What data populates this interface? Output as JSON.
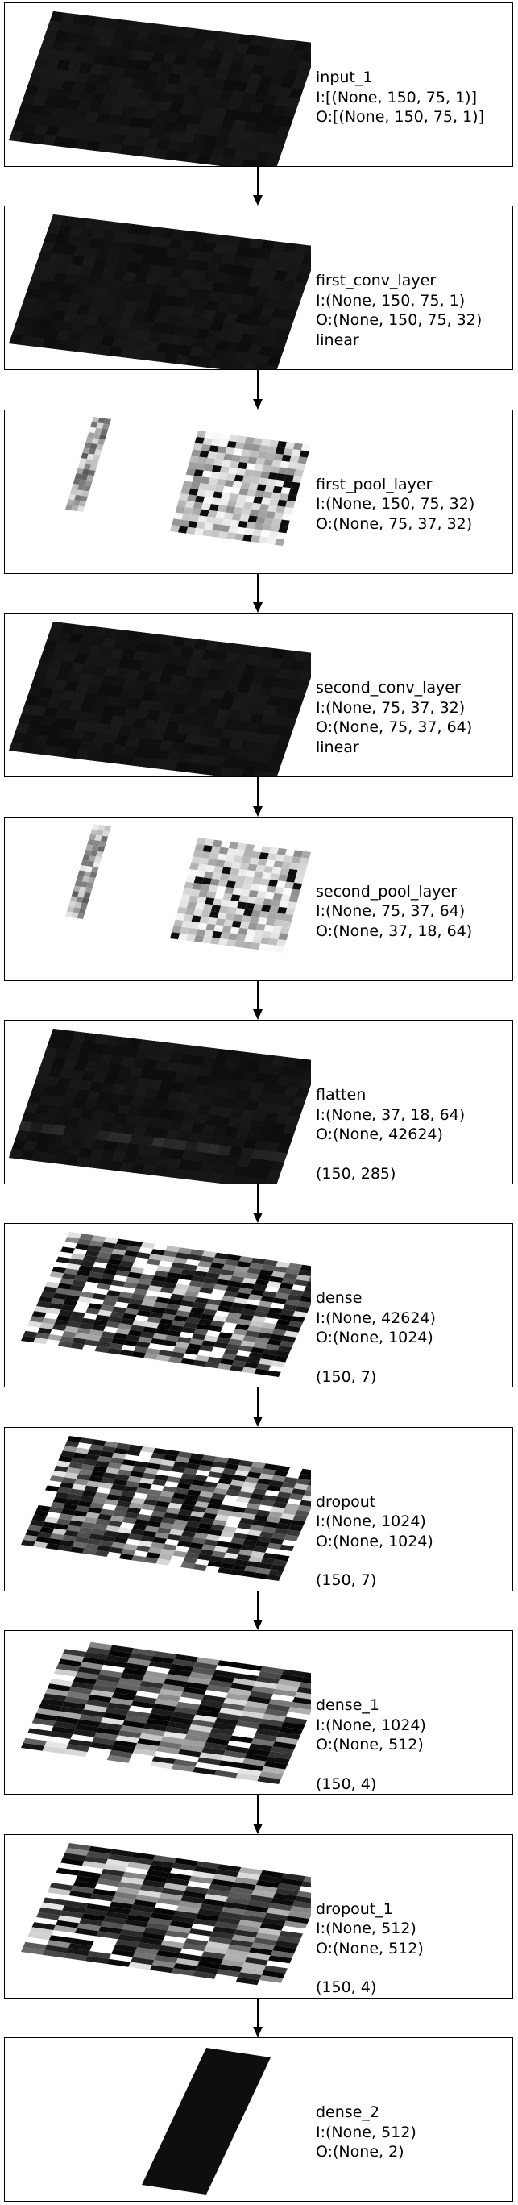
{
  "layers": [
    {
      "name": "input_1",
      "input": "I:[(None, 150, 75, 1)]",
      "output": "O:[(None, 150, 75, 1)]",
      "activation": "",
      "shape": "",
      "viz": "dark-plane"
    },
    {
      "name": "first_conv_layer",
      "input": "I:(None, 150, 75, 1)",
      "output": "O:(None, 150, 75, 32)",
      "activation": "linear",
      "shape": "",
      "viz": "dark-plane"
    },
    {
      "name": "first_pool_layer",
      "input": "I:(None, 150, 75, 32)",
      "output": "O:(None, 75, 37, 32)",
      "activation": "",
      "shape": "",
      "viz": "pool-maps"
    },
    {
      "name": "second_conv_layer",
      "input": "I:(None, 75, 37, 32)",
      "output": "O:(None, 75, 37, 64)",
      "activation": "linear",
      "shape": "",
      "viz": "dark-plane"
    },
    {
      "name": "second_pool_layer",
      "input": "I:(None, 75, 37, 64)",
      "output": "O:(None, 37, 18, 64)",
      "activation": "",
      "shape": "",
      "viz": "pool-maps"
    },
    {
      "name": "flatten",
      "input": "I:(None, 37, 18, 64)",
      "output": "O:(None, 42624)",
      "activation": "",
      "shape": "(150, 285)",
      "viz": "dark-plane-striped"
    },
    {
      "name": "dense",
      "input": "I:(None, 42624)",
      "output": "O:(None, 1024)",
      "activation": "",
      "shape": "(150, 7)",
      "viz": "bars-7"
    },
    {
      "name": "dropout",
      "input": "I:(None, 1024)",
      "output": "O:(None, 1024)",
      "activation": "",
      "shape": "(150, 7)",
      "viz": "bars-7"
    },
    {
      "name": "dense_1",
      "input": "I:(None, 1024)",
      "output": "O:(None, 512)",
      "activation": "",
      "shape": "(150, 4)",
      "viz": "bars-4"
    },
    {
      "name": "dropout_1",
      "input": "I:(None, 512)",
      "output": "O:(None, 512)",
      "activation": "",
      "shape": "(150, 4)",
      "viz": "bars-4"
    },
    {
      "name": "dense_2",
      "input": "I:(None, 512)",
      "output": "O:(None, 2)",
      "activation": "",
      "shape": "",
      "viz": "narrow-plane"
    }
  ],
  "colors": {
    "border": "#000000",
    "background": "#ffffff",
    "plane_dark": "#141414"
  }
}
